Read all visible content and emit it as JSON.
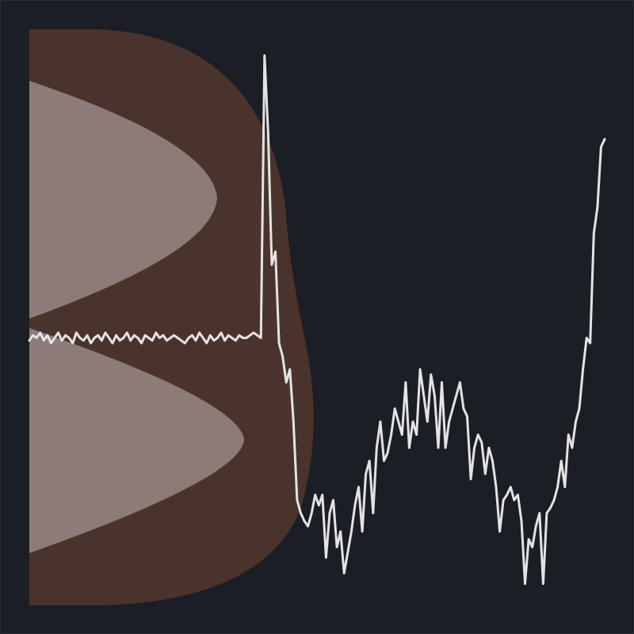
{
  "colors": {
    "background": "#1b1e24",
    "frame": "#2b2e34",
    "outer_shape": "#4a332d",
    "inner_shape": "#8c7b77",
    "line": "#e2e4e2"
  },
  "chart_data": {
    "type": "line",
    "title": "",
    "xlabel": "",
    "ylabel": "",
    "grid": false,
    "axes_visible": false,
    "xlim": [
      0,
      159
    ],
    "ylim": [
      -1.0,
      1.2
    ],
    "series": [
      {
        "values": [
          0.01,
          0.03,
          0.02,
          0.04,
          0.01,
          0.03,
          0.0,
          0.02,
          0.04,
          0.01,
          0.03,
          0.02,
          0.0,
          0.04,
          0.02,
          0.01,
          0.03,
          0.0,
          0.02,
          0.03,
          0.01,
          0.04,
          0.02,
          0.0,
          0.03,
          0.01,
          0.02,
          0.04,
          0.01,
          0.03,
          0.02,
          0.0,
          0.03,
          0.02,
          0.01,
          0.04,
          0.02,
          0.03,
          0.01,
          0.02,
          0.03,
          0.02,
          0.01,
          0.0,
          0.02,
          0.03,
          0.01,
          0.04,
          0.02,
          0.0,
          0.03,
          0.01,
          0.02,
          0.04,
          0.01,
          0.03,
          0.02,
          0.01,
          0.03,
          0.02,
          0.02,
          0.03,
          0.04,
          0.03,
          0.02,
          1.1,
          0.8,
          0.3,
          0.35,
          0.0,
          -0.05,
          -0.15,
          -0.1,
          -0.3,
          -0.6,
          -0.65,
          -0.68,
          -0.7,
          -0.65,
          -0.58,
          -0.62,
          -0.58,
          -0.82,
          -0.65,
          -0.6,
          -0.78,
          -0.72,
          -0.88,
          -0.8,
          -0.72,
          -0.62,
          -0.55,
          -0.72,
          -0.5,
          -0.45,
          -0.65,
          -0.4,
          -0.3,
          -0.45,
          -0.42,
          -0.35,
          -0.25,
          -0.3,
          -0.35,
          -0.15,
          -0.4,
          -0.3,
          -0.35,
          -0.1,
          -0.2,
          -0.3,
          -0.12,
          -0.2,
          -0.4,
          -0.15,
          -0.4,
          -0.3,
          -0.25,
          -0.2,
          -0.15,
          -0.25,
          -0.28,
          -0.52,
          -0.4,
          -0.35,
          -0.38,
          -0.5,
          -0.4,
          -0.45,
          -0.55,
          -0.72,
          -0.6,
          -0.58,
          -0.55,
          -0.6,
          -0.58,
          -0.68,
          -0.92,
          -0.75,
          -0.78,
          -0.7,
          -0.65,
          -0.92,
          -0.65,
          -0.63,
          -0.6,
          -0.55,
          -0.45,
          -0.55,
          -0.35,
          -0.4,
          -0.3,
          -0.25,
          -0.1,
          0.02,
          0.0,
          0.42,
          0.52,
          0.75,
          0.78
        ]
      }
    ],
    "background_shapes": [
      {
        "name": "outer-shape",
        "kind": "double-lobe",
        "color_key": "outer_shape"
      },
      {
        "name": "upper-inner-lobe",
        "kind": "lobe",
        "color_key": "inner_shape"
      },
      {
        "name": "lower-inner-lobe",
        "kind": "lobe",
        "color_key": "inner_shape"
      }
    ]
  }
}
